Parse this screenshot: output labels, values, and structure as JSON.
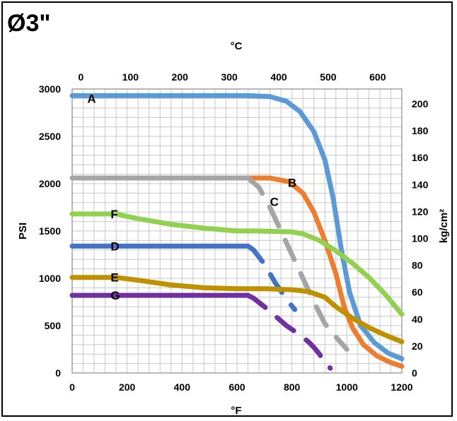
{
  "title": "Ø3\"",
  "chart_data": {
    "type": "line",
    "x_bottom": {
      "label": "°F",
      "ticks": [
        "0",
        "200",
        "400",
        "600",
        "800",
        "1000",
        "1200"
      ],
      "range": [
        0,
        1200
      ]
    },
    "x_top": {
      "label": "°C",
      "ticks": [
        "0",
        "100",
        "200",
        "300",
        "400",
        "500",
        "600"
      ],
      "range": [
        -17.8,
        648.9
      ]
    },
    "y_left": {
      "label": "PSI",
      "ticks": [
        "0",
        "500",
        "1000",
        "1500",
        "2000",
        "2500",
        "3000"
      ],
      "range": [
        0,
        3000
      ]
    },
    "y_right": {
      "label": "kg/cm²",
      "ticks": [
        "0",
        "20",
        "40",
        "60",
        "80",
        "100",
        "120",
        "140",
        "160",
        "180",
        "200"
      ],
      "range": [
        0,
        211
      ]
    },
    "grid": true,
    "series": [
      {
        "name": "A",
        "color": "#5b9bd5",
        "dashed": false,
        "points": [
          [
            0,
            2930
          ],
          [
            400,
            2930
          ],
          [
            640,
            2930
          ],
          [
            720,
            2920
          ],
          [
            780,
            2870
          ],
          [
            830,
            2760
          ],
          [
            880,
            2550
          ],
          [
            920,
            2250
          ],
          [
            950,
            1850
          ],
          [
            980,
            1300
          ],
          [
            1010,
            850
          ],
          [
            1050,
            500
          ],
          [
            1100,
            320
          ],
          [
            1150,
            210
          ],
          [
            1200,
            150
          ]
        ]
      },
      {
        "name": "B",
        "color": "#ed7d31",
        "dashed": false,
        "points": [
          [
            640,
            2060
          ],
          [
            720,
            2060
          ],
          [
            790,
            2020
          ],
          [
            840,
            1900
          ],
          [
            880,
            1700
          ],
          [
            920,
            1400
          ],
          [
            960,
            1050
          ],
          [
            990,
            700
          ],
          [
            1020,
            480
          ],
          [
            1060,
            300
          ],
          [
            1110,
            180
          ],
          [
            1160,
            110
          ],
          [
            1200,
            70
          ]
        ]
      },
      {
        "name": "C",
        "color": "#a5a5a5",
        "dashed": true,
        "points": [
          [
            0,
            2060
          ],
          [
            640,
            2060
          ],
          [
            680,
            1960
          ],
          [
            720,
            1750
          ],
          [
            760,
            1500
          ],
          [
            800,
            1250
          ],
          [
            840,
            1000
          ],
          [
            880,
            750
          ],
          [
            920,
            520
          ],
          [
            960,
            380
          ],
          [
            1000,
            250
          ]
        ]
      },
      {
        "name": "D",
        "color": "#4472c4",
        "dashed": true,
        "points": [
          [
            0,
            1340
          ],
          [
            640,
            1340
          ],
          [
            660,
            1300
          ],
          [
            700,
            1150
          ],
          [
            740,
            950
          ],
          [
            780,
            780
          ],
          [
            810,
            670
          ]
        ]
      },
      {
        "name": "E",
        "color": "#bf9000",
        "dashed": false,
        "points": [
          [
            0,
            1010
          ],
          [
            160,
            1010
          ],
          [
            240,
            980
          ],
          [
            360,
            930
          ],
          [
            480,
            900
          ],
          [
            600,
            890
          ],
          [
            700,
            890
          ],
          [
            800,
            880
          ],
          [
            860,
            860
          ],
          [
            920,
            800
          ],
          [
            960,
            700
          ],
          [
            1020,
            580
          ],
          [
            1080,
            480
          ],
          [
            1140,
            400
          ],
          [
            1200,
            330
          ]
        ]
      },
      {
        "name": "F",
        "color": "#92d050",
        "dashed": false,
        "points": [
          [
            0,
            1680
          ],
          [
            160,
            1680
          ],
          [
            240,
            1630
          ],
          [
            360,
            1570
          ],
          [
            480,
            1530
          ],
          [
            600,
            1500
          ],
          [
            680,
            1500
          ],
          [
            800,
            1490
          ],
          [
            840,
            1470
          ],
          [
            900,
            1400
          ],
          [
            960,
            1290
          ],
          [
            1020,
            1160
          ],
          [
            1080,
            1010
          ],
          [
            1140,
            830
          ],
          [
            1200,
            620
          ]
        ]
      },
      {
        "name": "G",
        "color": "#7030a0",
        "dashed": true,
        "points": [
          [
            0,
            820
          ],
          [
            640,
            820
          ],
          [
            660,
            790
          ],
          [
            700,
            700
          ],
          [
            740,
            600
          ],
          [
            780,
            500
          ],
          [
            820,
            420
          ],
          [
            860,
            330
          ],
          [
            880,
            270
          ],
          [
            900,
            200
          ],
          [
            920,
            110
          ],
          [
            940,
            50
          ]
        ]
      }
    ],
    "curve_labels": [
      "A",
      "B",
      "C",
      "D",
      "E",
      "F",
      "G"
    ]
  }
}
